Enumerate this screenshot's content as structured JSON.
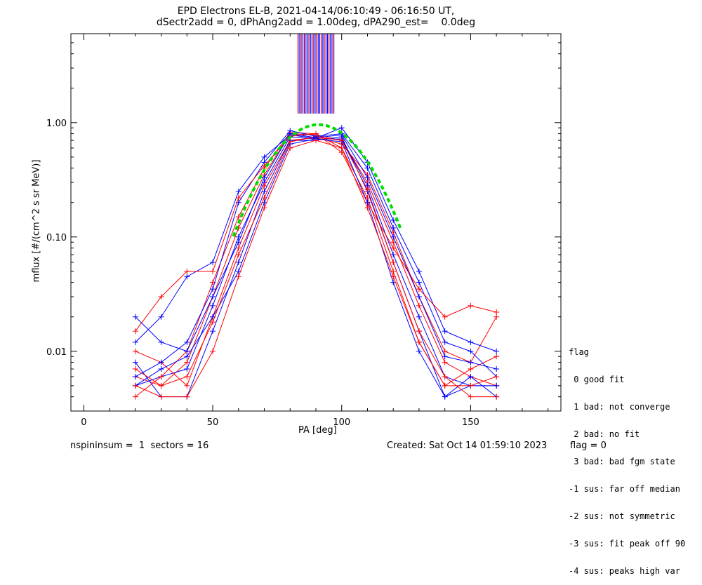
{
  "header": {
    "title_line1": "EPD Electrons EL-B, 2021-04-14/06:10:49 - 06:16:50 UT,",
    "title_line2": "dSectr2add = 0, dPhAng2add = 1.00deg, dPA290_est=    0.0deg"
  },
  "footer": {
    "left": "nspininsum =  1  sectors = 16",
    "created": "Created: Sat Oct 14 01:59:10 2023",
    "flag": "flag = 0"
  },
  "legend": {
    "title": "flag",
    "items": [
      " 0 good fit",
      " 1 bad: not converge",
      " 2 bad: no fit",
      " 3 bad: bad fgm state",
      "-1 sus: far off median",
      "-2 sus: not symmetric",
      "-3 sus: fit peak off 90",
      "-4 sus: peaks high var"
    ]
  },
  "colors": {
    "red": "#ff0000",
    "blue": "#0000ff",
    "green": "#00dd00",
    "axis": "#000000"
  },
  "chart_data": {
    "type": "line",
    "xlabel": "PA [deg]",
    "ylabel": "mflux [#/(cm^2 s sr MeV)]",
    "xlim": [
      -5,
      185
    ],
    "ylim": [
      0.003,
      6.0
    ],
    "yscale": "log",
    "xticks": [
      0,
      50,
      100,
      150
    ],
    "xtick_labels": [
      "0",
      "50",
      "100",
      "150"
    ],
    "yticks": [
      0.01,
      0.1,
      1.0
    ],
    "ytick_labels": [
      "0.01",
      "0.10",
      "1.00"
    ],
    "grid": false,
    "profile_pa": [
      20,
      30,
      40,
      50,
      60,
      70,
      80,
      90,
      100,
      110,
      120,
      130,
      140,
      150,
      160
    ],
    "series": [
      {
        "color": "red",
        "values": [
          0.006,
          0.005,
          0.008,
          0.03,
          0.12,
          0.35,
          0.8,
          0.78,
          0.7,
          0.3,
          0.09,
          0.025,
          0.008,
          0.006,
          0.005
        ]
      },
      {
        "color": "blue",
        "values": [
          0.005,
          0.006,
          0.007,
          0.025,
          0.1,
          0.3,
          0.75,
          0.72,
          0.72,
          0.28,
          0.07,
          0.02,
          0.006,
          0.005,
          0.005
        ]
      },
      {
        "color": "red",
        "values": [
          0.01,
          0.008,
          0.005,
          0.02,
          0.08,
          0.28,
          0.7,
          0.74,
          0.65,
          0.35,
          0.11,
          0.03,
          0.01,
          0.008,
          0.02
        ]
      },
      {
        "color": "blue",
        "values": [
          0.008,
          0.004,
          0.004,
          0.015,
          0.06,
          0.25,
          0.7,
          0.7,
          0.75,
          0.25,
          0.06,
          0.015,
          0.004,
          0.006,
          0.004
        ]
      },
      {
        "color": "red",
        "values": [
          0.004,
          0.006,
          0.01,
          0.04,
          0.15,
          0.4,
          0.82,
          0.8,
          0.6,
          0.22,
          0.05,
          0.012,
          0.005,
          0.007,
          0.009
        ]
      },
      {
        "color": "blue",
        "values": [
          0.006,
          0.008,
          0.012,
          0.035,
          0.2,
          0.45,
          0.85,
          0.76,
          0.8,
          0.4,
          0.12,
          0.04,
          0.012,
          0.01,
          0.006
        ]
      },
      {
        "color": "blue",
        "values": [
          0.012,
          0.02,
          0.045,
          0.06,
          0.25,
          0.5,
          0.78,
          0.73,
          0.9,
          0.45,
          0.14,
          0.05,
          0.015,
          0.012,
          0.01
        ]
      },
      {
        "color": "red",
        "values": [
          0.015,
          0.03,
          0.05,
          0.05,
          0.22,
          0.42,
          0.76,
          0.8,
          0.55,
          0.2,
          0.08,
          0.035,
          0.02,
          0.025,
          0.022
        ]
      },
      {
        "color": "blue",
        "values": [
          0.005,
          0.007,
          0.009,
          0.02,
          0.05,
          0.2,
          0.65,
          0.72,
          0.68,
          0.2,
          0.04,
          0.01,
          0.004,
          0.005,
          0.005
        ]
      },
      {
        "color": "red",
        "values": [
          0.007,
          0.005,
          0.006,
          0.018,
          0.07,
          0.22,
          0.68,
          0.75,
          0.7,
          0.26,
          0.06,
          0.015,
          0.006,
          0.004,
          0.004
        ]
      },
      {
        "color": "blue",
        "values": [
          0.02,
          0.012,
          0.01,
          0.03,
          0.09,
          0.33,
          0.8,
          0.74,
          0.78,
          0.33,
          0.1,
          0.03,
          0.009,
          0.008,
          0.007
        ]
      },
      {
        "color": "red",
        "values": [
          0.005,
          0.004,
          0.004,
          0.01,
          0.045,
          0.18,
          0.6,
          0.7,
          0.6,
          0.18,
          0.045,
          0.012,
          0.005,
          0.005,
          0.006
        ]
      }
    ],
    "fit_curve": {
      "color": "green",
      "style": "dashed",
      "peak_pa": 91,
      "peak": 0.96,
      "width_deg": 22,
      "pa_range": [
        58,
        123
      ]
    },
    "vertical_lines": {
      "pa_range": [
        83,
        97
      ],
      "y_range": [
        1.2,
        6.0
      ]
    }
  }
}
